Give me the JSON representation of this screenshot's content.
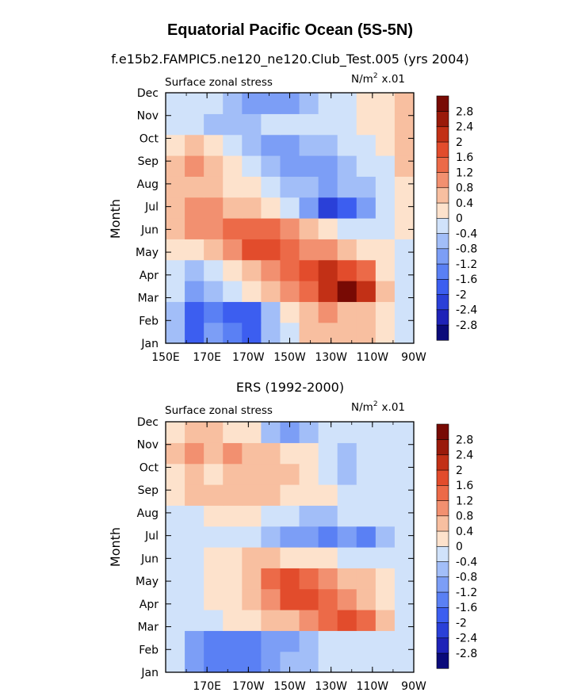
{
  "title": "Equatorial Pacific Ocean (5S-5N)",
  "panels": [
    {
      "subtitle": "f.e15b2.FAMPIC5.ne120_ne120.Club_Test.005 (yrs 2004)",
      "left_label": "Surface zonal stress",
      "units_label": "N/m",
      "units_sup": "2",
      "units_scale": "x.01",
      "ylabel": "Month",
      "xticks": [
        "150E",
        "170E",
        "170W",
        "150W",
        "130W",
        "110W",
        "90W"
      ],
      "yticks": [
        "Jan",
        "Feb",
        "Mar",
        "Apr",
        "May",
        "Jun",
        "Jul",
        "Aug",
        "Sep",
        "Oct",
        "Nov",
        "Dec"
      ]
    },
    {
      "subtitle": "ERS (1992-2000)",
      "left_label": "Surface zonal stress",
      "units_label": "N/m",
      "units_sup": "2",
      "units_scale": "x.01",
      "ylabel": "Month",
      "xticks": [
        "170E",
        "170W",
        "150W",
        "130W",
        "110W",
        "90W"
      ],
      "yticks": [
        "Jan",
        "Feb",
        "Mar",
        "Apr",
        "May",
        "Jun",
        "Jul",
        "Aug",
        "Sep",
        "Oct",
        "Nov",
        "Dec"
      ]
    }
  ],
  "chart_data": [
    {
      "type": "heatmap",
      "title": "f.e15b2.FAMPIC5.ne120_ne120.Club_Test.005 (yrs 2004)",
      "variable": "Surface zonal stress",
      "units": "N/m^2 x.01",
      "xlabel": "",
      "ylabel": "Month",
      "x_lon": [
        150,
        160,
        170,
        180,
        190,
        200,
        210,
        220,
        230,
        240,
        250,
        260,
        270
      ],
      "y_months": [
        "Jan",
        "Feb",
        "Mar",
        "Apr",
        "May",
        "Jun",
        "Jul",
        "Aug",
        "Sep",
        "Oct",
        "Nov",
        "Dec"
      ],
      "z": [
        [
          -0.6,
          -1.8,
          -1.0,
          -1.6,
          -1.8,
          -0.6,
          -0.2,
          0.4,
          0.4,
          0.6,
          0.4,
          0.2,
          -0.2
        ],
        [
          -0.8,
          -2.0,
          -1.6,
          -2.0,
          -1.8,
          -0.8,
          0.2,
          0.6,
          0.8,
          0.6,
          0.4,
          0.0,
          -0.2
        ],
        [
          -0.4,
          -1.2,
          -0.8,
          -0.4,
          0.0,
          0.4,
          0.8,
          1.2,
          2.2,
          2.8,
          2.0,
          0.4,
          -0.2
        ],
        [
          -0.2,
          -0.6,
          -0.2,
          0.2,
          0.6,
          0.8,
          1.2,
          1.6,
          2.0,
          1.8,
          1.2,
          0.2,
          -0.2
        ],
        [
          0.0,
          0.2,
          0.4,
          0.8,
          1.6,
          1.6,
          1.2,
          1.0,
          0.8,
          0.4,
          0.2,
          0.0,
          -0.2
        ],
        [
          0.4,
          0.8,
          1.0,
          1.2,
          1.4,
          1.2,
          0.8,
          0.4,
          0.2,
          -0.2,
          -0.4,
          -0.2,
          0.2
        ],
        [
          0.4,
          0.8,
          0.8,
          0.6,
          0.4,
          0.2,
          -0.4,
          -1.2,
          -2.4,
          -2.0,
          -1.0,
          -0.4,
          0.2
        ],
        [
          0.4,
          0.4,
          0.4,
          0.2,
          0.0,
          -0.2,
          -0.6,
          -0.8,
          -1.0,
          -0.8,
          -0.6,
          -0.2,
          0.2
        ],
        [
          0.4,
          0.8,
          0.6,
          0.2,
          -0.2,
          -0.6,
          -1.0,
          -1.2,
          -1.2,
          -0.8,
          -0.4,
          -0.2,
          0.4
        ],
        [
          0.2,
          0.4,
          0.2,
          -0.2,
          -0.6,
          -1.0,
          -1.2,
          -0.8,
          -0.6,
          -0.2,
          -0.2,
          0.0,
          0.4
        ],
        [
          -0.2,
          -0.2,
          -0.6,
          -0.8,
          -0.6,
          -0.4,
          -0.2,
          -0.2,
          -0.2,
          -0.2,
          0.0,
          0.2,
          0.4
        ],
        [
          -0.2,
          -0.2,
          -0.4,
          -0.8,
          -1.0,
          -1.2,
          -1.0,
          -0.6,
          -0.4,
          -0.2,
          0.0,
          0.2,
          0.4
        ]
      ],
      "levels": [
        -2.8,
        -2.4,
        -2.0,
        -1.6,
        -1.2,
        -0.8,
        -0.4,
        0,
        0.4,
        0.8,
        1.2,
        1.6,
        2.0,
        2.4,
        2.8
      ],
      "level_labels": [
        "2.8",
        "2.4",
        "2",
        "1.6",
        "1.2",
        "0.8",
        "0.4",
        "0",
        "-0.4",
        "-0.8",
        "-1.2",
        "-1.6",
        "-2",
        "-2.4",
        "-2.8"
      ],
      "colors": [
        "#0a0a7a",
        "#1e22b8",
        "#2a40d8",
        "#3c5ef0",
        "#5a80f4",
        "#7c9ef6",
        "#a2bef8",
        "#d0e2fa",
        "#fde2cc",
        "#f8bfa0",
        "#f29070",
        "#ec6a48",
        "#e24c2c",
        "#c23016",
        "#9a1a0a",
        "#780a04"
      ]
    },
    {
      "type": "heatmap",
      "title": "ERS (1992-2000)",
      "variable": "Surface zonal stress",
      "units": "N/m^2 x.01",
      "xlabel": "",
      "ylabel": "Month",
      "x_lon": [
        150,
        160,
        170,
        180,
        190,
        200,
        210,
        220,
        230,
        240,
        250,
        260,
        270
      ],
      "y_months": [
        "Jan",
        "Feb",
        "Mar",
        "Apr",
        "May",
        "Jun",
        "Jul",
        "Aug",
        "Sep",
        "Oct",
        "Nov",
        "Dec"
      ],
      "z": [
        [
          -0.4,
          -1.0,
          -1.4,
          -1.6,
          -1.4,
          -1.2,
          -0.8,
          -0.6,
          -0.4,
          -0.2,
          -0.2,
          -0.2,
          -0.2
        ],
        [
          -0.4,
          -1.2,
          -1.6,
          -1.6,
          -1.4,
          -1.2,
          -1.0,
          -0.8,
          -0.4,
          -0.2,
          -0.2,
          -0.2,
          -0.2
        ],
        [
          -0.2,
          -0.4,
          -0.2,
          0.0,
          0.2,
          0.4,
          0.6,
          1.0,
          1.2,
          1.6,
          1.4,
          0.6,
          -0.2
        ],
        [
          -0.2,
          -0.2,
          0.0,
          0.2,
          0.6,
          1.0,
          1.6,
          1.6,
          1.4,
          1.0,
          0.6,
          0.2,
          -0.2
        ],
        [
          -0.2,
          -0.2,
          0.0,
          0.2,
          0.6,
          1.2,
          1.6,
          1.4,
          1.0,
          0.6,
          0.4,
          0.0,
          -0.2
        ],
        [
          -0.2,
          -0.4,
          0.0,
          0.2,
          0.4,
          0.4,
          0.2,
          0.2,
          0.0,
          -0.2,
          -0.2,
          -0.2,
          -0.2
        ],
        [
          -0.2,
          -0.2,
          -0.2,
          -0.4,
          -0.4,
          -0.8,
          -1.2,
          -1.2,
          -1.6,
          -1.2,
          -1.6,
          -0.8,
          -0.2
        ],
        [
          -0.2,
          -0.2,
          0.2,
          0.2,
          0.0,
          -0.2,
          -0.4,
          -0.6,
          -0.6,
          -0.4,
          -0.4,
          -0.2,
          -0.2
        ],
        [
          0.2,
          0.4,
          0.4,
          0.4,
          0.4,
          0.6,
          0.2,
          0.2,
          0.0,
          -0.4,
          -0.4,
          -0.2,
          -0.2
        ],
        [
          0.2,
          0.4,
          0.2,
          0.4,
          0.6,
          0.4,
          0.4,
          0.2,
          -0.2,
          -0.6,
          -0.4,
          -0.2,
          -0.2
        ],
        [
          0.4,
          0.8,
          0.6,
          0.8,
          0.6,
          0.6,
          0.2,
          0.0,
          -0.2,
          -0.6,
          -0.4,
          -0.2,
          -0.2
        ],
        [
          0.2,
          0.6,
          0.4,
          0.2,
          0.0,
          -0.6,
          -1.2,
          -0.8,
          -0.4,
          -0.2,
          -0.2,
          -0.2,
          -0.2
        ]
      ],
      "levels": [
        -2.8,
        -2.4,
        -2.0,
        -1.6,
        -1.2,
        -0.8,
        -0.4,
        0,
        0.4,
        0.8,
        1.2,
        1.6,
        2.0,
        2.4,
        2.8
      ],
      "level_labels": [
        "2.8",
        "2.4",
        "2",
        "1.6",
        "1.2",
        "0.8",
        "0.4",
        "0",
        "-0.4",
        "-0.8",
        "-1.2",
        "-1.6",
        "-2",
        "-2.4",
        "-2.8"
      ],
      "colors": [
        "#0a0a7a",
        "#1e22b8",
        "#2a40d8",
        "#3c5ef0",
        "#5a80f4",
        "#7c9ef6",
        "#a2bef8",
        "#d0e2fa",
        "#fde2cc",
        "#f8bfa0",
        "#f29070",
        "#ec6a48",
        "#e24c2c",
        "#c23016",
        "#9a1a0a",
        "#780a04"
      ]
    }
  ]
}
